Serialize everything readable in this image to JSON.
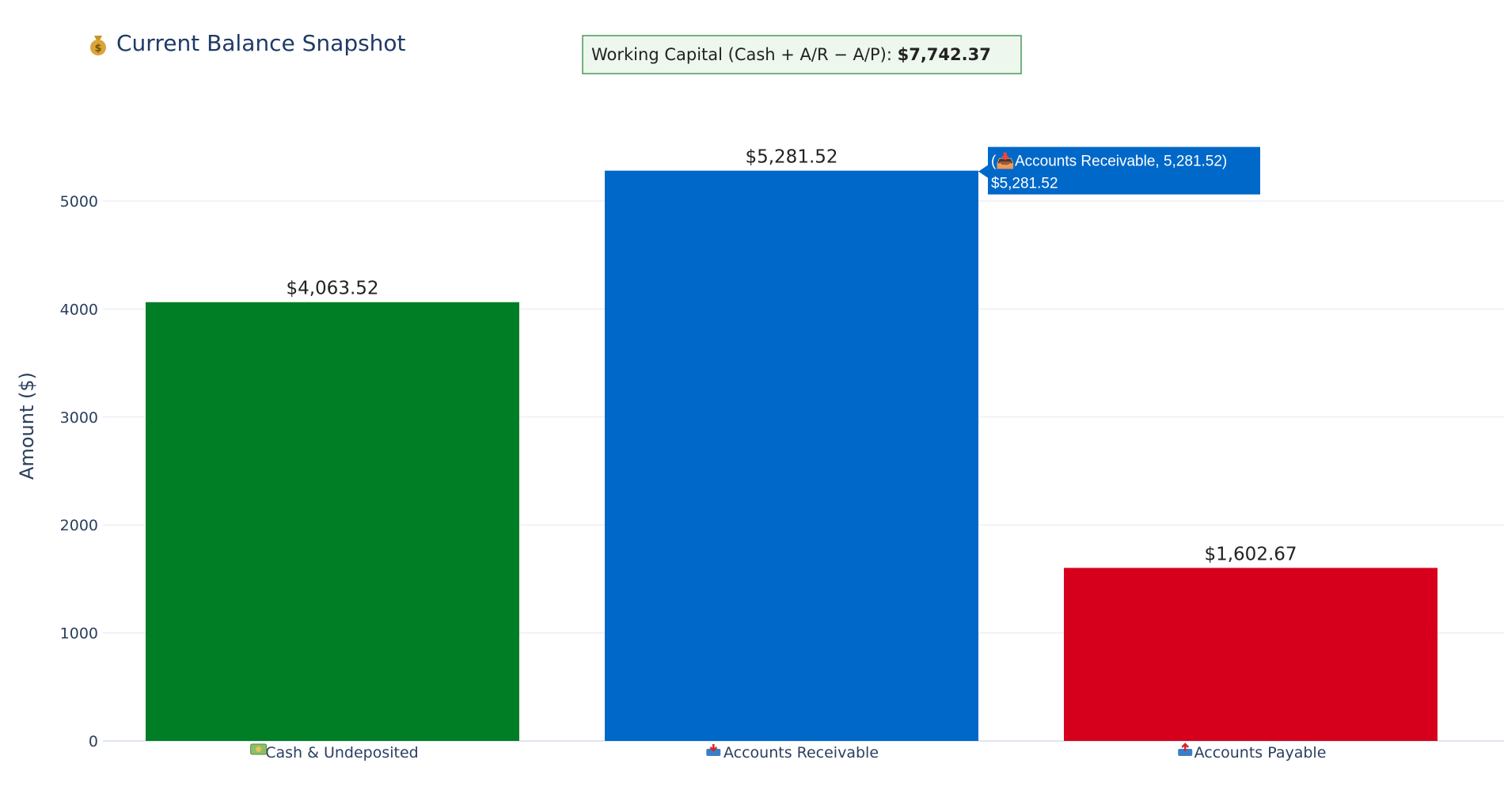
{
  "title": {
    "icon": "money-bag-icon",
    "text": "Current Balance Snapshot"
  },
  "working_capital": {
    "label": "Working Capital (Cash + A/R − A/P): ",
    "value": "$7,742.37"
  },
  "hover_label": {
    "line1": "(📥Accounts Receivable, 5,281.52)",
    "line2": "$5,281.52",
    "category_index": 1
  },
  "colors": {
    "title": "#1f3a66",
    "axis_text": "#2a3f5f",
    "grid": "#e8ecf4",
    "zero_line": "#dfe5f0",
    "wc_border": "#4a9a55",
    "wc_background": "#edf7ee",
    "hover_background": "#0068c9"
  },
  "chart_data": {
    "type": "bar",
    "title": "Current Balance Snapshot",
    "xlabel": "",
    "ylabel": "Amount ($)",
    "ylim": [
      0,
      5500
    ],
    "grid": true,
    "yticks": [
      0,
      1000,
      2000,
      3000,
      4000,
      5000
    ],
    "categories": [
      "Cash & Undeposited",
      "Accounts Receivable",
      "Accounts Payable"
    ],
    "category_icons": [
      "dollar-banknote-icon",
      "inbox-tray-icon",
      "outbox-tray-icon"
    ],
    "values": [
      4063.52,
      5281.52,
      1602.67
    ],
    "value_labels": [
      "$4,063.52",
      "$5,281.52",
      "$1,602.67"
    ],
    "colors": [
      "#007e25",
      "#0068c9",
      "#d6001c"
    ]
  }
}
